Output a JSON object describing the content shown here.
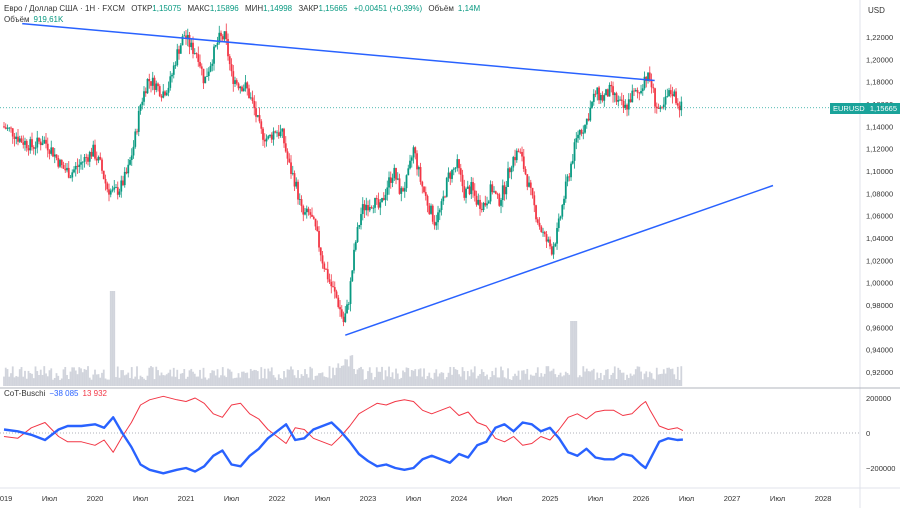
{
  "header": {
    "symbol": "Евро / Доллар США · 1Н · FXCM",
    "open_label": "ОТКР",
    "open": "1,15075",
    "high_label": "МАКС",
    "high": "1,15896",
    "low_label": "МИН",
    "low": "1,14998",
    "close_label": "ЗАКР",
    "close": "1,15665",
    "change": "+0,00451 (+0,39%)",
    "volume_label": "Объём",
    "volume": "1,14M"
  },
  "volume_legend": {
    "label": "Объём",
    "value": "919,61K"
  },
  "cot_legend": {
    "name": "CoT-Buschi",
    "v1": "−38 085",
    "v2": "13 932"
  },
  "currency": "USD",
  "price_badge": {
    "symbol": "EURUSD",
    "price": "1,15665"
  },
  "colors": {
    "up": "#089981",
    "down": "#f23645",
    "trend": "#2962ff",
    "cot_blue": "#2962ff",
    "cot_red": "#f23645",
    "volume": "#d1d4dc",
    "badge": "#1aa39a"
  },
  "chart_data": [
    {
      "type": "candlestick",
      "title": "",
      "ylabel": "USD",
      "ylim": [
        0.912,
        1.232
      ],
      "xlim": [
        2019.0,
        2028.45
      ],
      "y_ticks": [
        "1,22000",
        "1,20000",
        "1,18000",
        "1,16000",
        "1,14000",
        "1,12000",
        "1,10000",
        "1,08000",
        "1,06000",
        "1,04000",
        "1,02000",
        "1,00000",
        "0,98000",
        "0,96000",
        "0,94000",
        "0,92000"
      ],
      "y_tick_values": [
        1.22,
        1.2,
        1.18,
        1.16,
        1.14,
        1.12,
        1.1,
        1.08,
        1.06,
        1.04,
        1.02,
        1.0,
        0.98,
        0.96,
        0.94,
        0.92
      ],
      "x_ticks": [
        {
          "label": "2019",
          "x": 2019.0
        },
        {
          "label": "Июл",
          "x": 2019.5
        },
        {
          "label": "2020",
          "x": 2020.0
        },
        {
          "label": "Июл",
          "x": 2020.5
        },
        {
          "label": "2021",
          "x": 2021.0
        },
        {
          "label": "Июл",
          "x": 2021.5
        },
        {
          "label": "2022",
          "x": 2022.0
        },
        {
          "label": "Июл",
          "x": 2022.5
        },
        {
          "label": "2023",
          "x": 2023.0
        },
        {
          "label": "Июл",
          "x": 2023.5
        },
        {
          "label": "2024",
          "x": 2024.0
        },
        {
          "label": "Июл",
          "x": 2024.5
        },
        {
          "label": "2025",
          "x": 2025.0
        },
        {
          "label": "Июл",
          "x": 2025.5
        },
        {
          "label": "2026",
          "x": 2026.0
        },
        {
          "label": "Июл",
          "x": 2026.5
        },
        {
          "label": "2027",
          "x": 2027.0
        },
        {
          "label": "Июл",
          "x": 2027.5
        },
        {
          "label": "2028",
          "x": 2028.0
        }
      ],
      "price_path": [
        [
          2019.0,
          1.14
        ],
        [
          2019.1,
          1.136
        ],
        [
          2019.2,
          1.128
        ],
        [
          2019.33,
          1.122
        ],
        [
          2019.45,
          1.128
        ],
        [
          2019.55,
          1.118
        ],
        [
          2019.66,
          1.103
        ],
        [
          2019.75,
          1.098
        ],
        [
          2019.85,
          1.106
        ],
        [
          2019.92,
          1.112
        ],
        [
          2020.0,
          1.118
        ],
        [
          2020.08,
          1.105
        ],
        [
          2020.15,
          1.085
        ],
        [
          2020.22,
          1.08
        ],
        [
          2020.3,
          1.085
        ],
        [
          2020.38,
          1.1
        ],
        [
          2020.45,
          1.125
        ],
        [
          2020.52,
          1.16
        ],
        [
          2020.6,
          1.182
        ],
        [
          2020.68,
          1.178
        ],
        [
          2020.76,
          1.17
        ],
        [
          2020.84,
          1.178
        ],
        [
          2020.92,
          1.205
        ],
        [
          2021.0,
          1.222
        ],
        [
          2021.08,
          1.21
        ],
        [
          2021.15,
          1.205
        ],
        [
          2021.22,
          1.18
        ],
        [
          2021.3,
          1.2
        ],
        [
          2021.38,
          1.218
        ],
        [
          2021.45,
          1.22
        ],
        [
          2021.52,
          1.185
        ],
        [
          2021.6,
          1.178
        ],
        [
          2021.68,
          1.175
        ],
        [
          2021.76,
          1.158
        ],
        [
          2021.84,
          1.135
        ],
        [
          2021.92,
          1.128
        ],
        [
          2022.0,
          1.137
        ],
        [
          2022.08,
          1.132
        ],
        [
          2022.15,
          1.105
        ],
        [
          2022.22,
          1.09
        ],
        [
          2022.3,
          1.06
        ],
        [
          2022.38,
          1.062
        ],
        [
          2022.45,
          1.045
        ],
        [
          2022.52,
          1.02
        ],
        [
          2022.6,
          1.0
        ],
        [
          2022.68,
          0.985
        ],
        [
          2022.75,
          0.965
        ],
        [
          2022.8,
          0.98
        ],
        [
          2022.88,
          1.035
        ],
        [
          2022.95,
          1.065
        ],
        [
          2023.0,
          1.07
        ],
        [
          2023.08,
          1.073
        ],
        [
          2023.15,
          1.065
        ],
        [
          2023.22,
          1.085
        ],
        [
          2023.3,
          1.1
        ],
        [
          2023.38,
          1.08
        ],
        [
          2023.45,
          1.092
        ],
        [
          2023.52,
          1.12
        ],
        [
          2023.6,
          1.09
        ],
        [
          2023.68,
          1.07
        ],
        [
          2023.75,
          1.055
        ],
        [
          2023.82,
          1.065
        ],
        [
          2023.9,
          1.095
        ],
        [
          2024.0,
          1.105
        ],
        [
          2024.08,
          1.08
        ],
        [
          2024.15,
          1.085
        ],
        [
          2024.22,
          1.072
        ],
        [
          2024.3,
          1.07
        ],
        [
          2024.38,
          1.085
        ],
        [
          2024.45,
          1.072
        ],
        [
          2024.52,
          1.085
        ],
        [
          2024.6,
          1.11
        ],
        [
          2024.68,
          1.118
        ],
        [
          2024.75,
          1.098
        ],
        [
          2024.82,
          1.075
        ],
        [
          2024.9,
          1.052
        ],
        [
          2024.96,
          1.04
        ],
        [
          2025.04,
          1.03
        ],
        [
          2025.1,
          1.045
        ],
        [
          2025.18,
          1.08
        ],
        [
          2025.26,
          1.11
        ],
        [
          2025.33,
          1.135
        ],
        [
          2025.4,
          1.14
        ],
        [
          2025.46,
          1.155
        ],
        [
          2025.52,
          1.17
        ],
        [
          2025.6,
          1.165
        ],
        [
          2025.68,
          1.172
        ],
        [
          2025.76,
          1.162
        ],
        [
          2025.84,
          1.155
        ],
        [
          2025.92,
          1.168
        ],
        [
          2026.0,
          1.17
        ],
        [
          2026.06,
          1.185
        ],
        [
          2026.12,
          1.182
        ],
        [
          2026.18,
          1.16
        ],
        [
          2026.24,
          1.15
        ],
        [
          2026.3,
          1.165
        ],
        [
          2026.36,
          1.172
        ],
        [
          2026.42,
          1.162
        ],
        [
          2026.46,
          1.157
        ]
      ],
      "trendlines": [
        {
          "from": [
            2019.2,
            1.232
          ],
          "to": [
            2026.15,
            1.181
          ]
        },
        {
          "from": [
            2022.75,
            0.953
          ],
          "to": [
            2027.45,
            1.087
          ]
        }
      ],
      "last_price": 1.15665,
      "last_price_label": "1,15665"
    },
    {
      "type": "line",
      "title": "CoT-Buschi",
      "ylim": [
        -270000,
        270000
      ],
      "y_ticks": [
        "200000",
        "0",
        "−200000"
      ],
      "y_tick_values": [
        200000,
        0,
        -200000
      ],
      "series": [
        {
          "name": "CoT-Buschi",
          "points": [
            [
              2019.0,
              -20000
            ],
            [
              2019.15,
              -30000
            ],
            [
              2019.3,
              30000
            ],
            [
              2019.45,
              60000
            ],
            [
              2019.6,
              -20000
            ],
            [
              2019.7,
              -50000
            ],
            [
              2019.85,
              -50000
            ],
            [
              2020.0,
              -70000
            ],
            [
              2020.1,
              -40000
            ],
            [
              2020.2,
              -110000
            ],
            [
              2020.3,
              -20000
            ],
            [
              2020.4,
              60000
            ],
            [
              2020.5,
              160000
            ],
            [
              2020.6,
              190000
            ],
            [
              2020.75,
              210000
            ],
            [
              2020.9,
              190000
            ],
            [
              2021.0,
              180000
            ],
            [
              2021.1,
              200000
            ],
            [
              2021.2,
              170000
            ],
            [
              2021.3,
              110000
            ],
            [
              2021.4,
              90000
            ],
            [
              2021.5,
              160000
            ],
            [
              2021.6,
              170000
            ],
            [
              2021.7,
              110000
            ],
            [
              2021.8,
              80000
            ],
            [
              2021.9,
              20000
            ],
            [
              2022.0,
              -20000
            ],
            [
              2022.1,
              -60000
            ],
            [
              2022.2,
              30000
            ],
            [
              2022.3,
              20000
            ],
            [
              2022.4,
              -30000
            ],
            [
              2022.5,
              -50000
            ],
            [
              2022.6,
              -70000
            ],
            [
              2022.7,
              -20000
            ],
            [
              2022.8,
              40000
            ],
            [
              2022.9,
              110000
            ],
            [
              2023.0,
              140000
            ],
            [
              2023.1,
              170000
            ],
            [
              2023.2,
              160000
            ],
            [
              2023.3,
              180000
            ],
            [
              2023.4,
              190000
            ],
            [
              2023.5,
              180000
            ],
            [
              2023.6,
              130000
            ],
            [
              2023.7,
              110000
            ],
            [
              2023.8,
              130000
            ],
            [
              2023.9,
              150000
            ],
            [
              2024.0,
              100000
            ],
            [
              2024.1,
              120000
            ],
            [
              2024.2,
              60000
            ],
            [
              2024.3,
              40000
            ],
            [
              2024.4,
              -30000
            ],
            [
              2024.5,
              -50000
            ],
            [
              2024.6,
              -20000
            ],
            [
              2024.7,
              -70000
            ],
            [
              2024.8,
              -60000
            ],
            [
              2024.9,
              -20000
            ],
            [
              2025.0,
              -40000
            ],
            [
              2025.1,
              20000
            ],
            [
              2025.2,
              90000
            ],
            [
              2025.3,
              110000
            ],
            [
              2025.4,
              80000
            ],
            [
              2025.5,
              120000
            ],
            [
              2025.6,
              130000
            ],
            [
              2025.7,
              130000
            ],
            [
              2025.8,
              100000
            ],
            [
              2025.9,
              110000
            ],
            [
              2026.0,
              160000
            ],
            [
              2026.05,
              180000
            ],
            [
              2026.1,
              130000
            ],
            [
              2026.2,
              40000
            ],
            [
              2026.3,
              20000
            ],
            [
              2026.4,
              30000
            ],
            [
              2026.46,
              14000
            ]
          ]
        },
        {
          "name": "CoT-Buschi",
          "points": [
            [
              2019.0,
              20000
            ],
            [
              2019.15,
              10000
            ],
            [
              2019.3,
              -10000
            ],
            [
              2019.45,
              -40000
            ],
            [
              2019.6,
              20000
            ],
            [
              2019.7,
              40000
            ],
            [
              2019.85,
              40000
            ],
            [
              2020.0,
              50000
            ],
            [
              2020.1,
              30000
            ],
            [
              2020.2,
              90000
            ],
            [
              2020.3,
              0
            ],
            [
              2020.4,
              -80000
            ],
            [
              2020.5,
              -180000
            ],
            [
              2020.6,
              -210000
            ],
            [
              2020.75,
              -230000
            ],
            [
              2020.9,
              -210000
            ],
            [
              2021.0,
              -200000
            ],
            [
              2021.1,
              -220000
            ],
            [
              2021.2,
              -190000
            ],
            [
              2021.3,
              -130000
            ],
            [
              2021.4,
              -100000
            ],
            [
              2021.5,
              -180000
            ],
            [
              2021.6,
              -190000
            ],
            [
              2021.7,
              -130000
            ],
            [
              2021.8,
              -90000
            ],
            [
              2021.9,
              -30000
            ],
            [
              2022.0,
              10000
            ],
            [
              2022.1,
              50000
            ],
            [
              2022.2,
              -40000
            ],
            [
              2022.3,
              -30000
            ],
            [
              2022.4,
              20000
            ],
            [
              2022.5,
              40000
            ],
            [
              2022.6,
              60000
            ],
            [
              2022.7,
              10000
            ],
            [
              2022.8,
              -50000
            ],
            [
              2022.9,
              -120000
            ],
            [
              2023.0,
              -160000
            ],
            [
              2023.1,
              -190000
            ],
            [
              2023.2,
              -180000
            ],
            [
              2023.3,
              -200000
            ],
            [
              2023.4,
              -210000
            ],
            [
              2023.5,
              -200000
            ],
            [
              2023.6,
              -150000
            ],
            [
              2023.7,
              -130000
            ],
            [
              2023.8,
              -150000
            ],
            [
              2023.9,
              -170000
            ],
            [
              2024.0,
              -120000
            ],
            [
              2024.1,
              -140000
            ],
            [
              2024.2,
              -70000
            ],
            [
              2024.3,
              -50000
            ],
            [
              2024.4,
              30000
            ],
            [
              2024.5,
              50000
            ],
            [
              2024.6,
              10000
            ],
            [
              2024.7,
              60000
            ],
            [
              2024.8,
              50000
            ],
            [
              2024.9,
              10000
            ],
            [
              2025.0,
              30000
            ],
            [
              2025.1,
              -30000
            ],
            [
              2025.2,
              -110000
            ],
            [
              2025.3,
              -130000
            ],
            [
              2025.4,
              -90000
            ],
            [
              2025.5,
              -140000
            ],
            [
              2025.6,
              -150000
            ],
            [
              2025.7,
              -150000
            ],
            [
              2025.8,
              -120000
            ],
            [
              2025.9,
              -130000
            ],
            [
              2026.0,
              -180000
            ],
            [
              2026.05,
              -200000
            ],
            [
              2026.1,
              -150000
            ],
            [
              2026.2,
              -50000
            ],
            [
              2026.3,
              -30000
            ],
            [
              2026.4,
              -40000
            ],
            [
              2026.46,
              -38000
            ]
          ]
        }
      ]
    }
  ]
}
